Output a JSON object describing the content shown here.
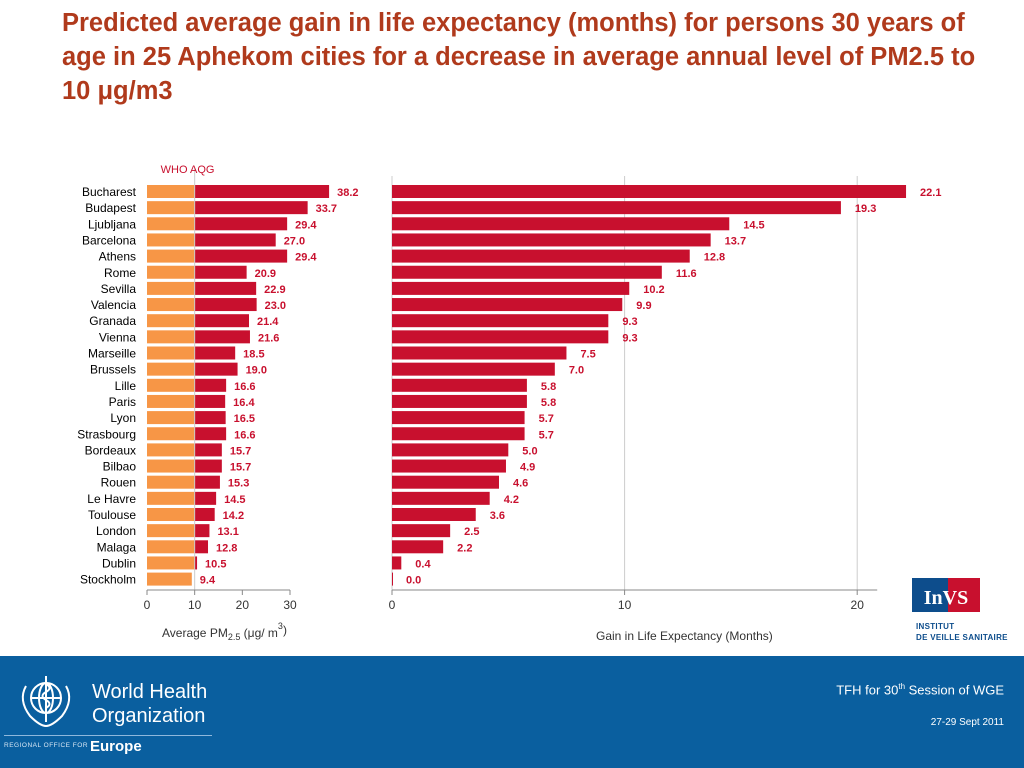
{
  "slide": {
    "title": "Predicted average gain in life expectancy (months) for persons 30 years of age in 25 Aphekom cities for a decrease in average annual level of PM2.5 to 10 μg/m3"
  },
  "chart_data": [
    {
      "type": "bar",
      "orientation": "horizontal",
      "stacked_segments": [
        "up to WHO AQG (10)",
        "above WHO AQG"
      ],
      "categories": [
        "Bucharest",
        "Budapest",
        "Ljubljana",
        "Barcelona",
        "Athens",
        "Rome",
        "Sevilla",
        "Valencia",
        "Granada",
        "Vienna",
        "Marseille",
        "Brussels",
        "Lille",
        "Paris",
        "Lyon",
        "Strasbourg",
        "Bordeaux",
        "Bilbao",
        "Rouen",
        "Le Havre",
        "Toulouse",
        "London",
        "Malaga",
        "Dublin",
        "Stockholm"
      ],
      "values": [
        38.2,
        33.7,
        29.4,
        27.0,
        29.4,
        20.9,
        22.9,
        23.0,
        21.4,
        21.6,
        18.5,
        19.0,
        16.6,
        16.4,
        16.5,
        16.6,
        15.7,
        15.7,
        15.3,
        14.5,
        14.2,
        13.1,
        12.8,
        10.5,
        9.4
      ],
      "value_labels": [
        "38.2",
        "33.7",
        "29.4",
        "27.0",
        "29.4",
        "20.9",
        "22.9",
        "23.0",
        "21.4",
        "21.6",
        "18.5",
        "19.0",
        "16.6",
        "16.4",
        "16.5",
        "16.6",
        "15.7",
        "15.7",
        "15.3",
        "14.5",
        "14.2",
        "13.1",
        "12.8",
        "10.5",
        "9.4"
      ],
      "reference_line": {
        "value": 10,
        "label": "WHO AQG"
      },
      "xlim": [
        0,
        30
      ],
      "x_ticks": [
        "0",
        "10",
        "20",
        "30"
      ],
      "xlabel": {
        "main": "Average PM",
        "sub": "2.5",
        "unit": "(μg/ m",
        "unit_sup": "3",
        "unit_close": ")"
      },
      "colors": {
        "below_aqg": "#f79646",
        "above_aqg": "#c8102e"
      }
    },
    {
      "type": "bar",
      "orientation": "horizontal",
      "categories": [
        "Bucharest",
        "Budapest",
        "Ljubljana",
        "Barcelona",
        "Athens",
        "Rome",
        "Sevilla",
        "Valencia",
        "Granada",
        "Vienna",
        "Marseille",
        "Brussels",
        "Lille",
        "Paris",
        "Lyon",
        "Strasbourg",
        "Bordeaux",
        "Bilbao",
        "Rouen",
        "Le Havre",
        "Toulouse",
        "London",
        "Malaga",
        "Dublin",
        "Stockholm"
      ],
      "values": [
        22.1,
        19.3,
        14.5,
        13.7,
        12.8,
        11.6,
        10.2,
        9.9,
        9.3,
        9.3,
        7.5,
        7.0,
        5.8,
        5.8,
        5.7,
        5.7,
        5.0,
        4.9,
        4.6,
        4.2,
        3.6,
        2.5,
        2.2,
        0.4,
        0.0
      ],
      "value_labels": [
        "22.1",
        "19.3",
        "14.5",
        "13.7",
        "12.8",
        "11.6",
        "10.2",
        "9.9",
        "9.3",
        "9.3",
        "7.5",
        "7.0",
        "5.8",
        "5.8",
        "5.7",
        "5.7",
        "5.0",
        "4.9",
        "4.6",
        "4.2",
        "3.6",
        "2.5",
        "2.2",
        "0.4",
        "0.0"
      ],
      "xlim": [
        0,
        22.7
      ],
      "x_ticks": [
        "0",
        "10",
        "20"
      ],
      "xlabel": "Gain in Life Expectancy (Months)",
      "grid": "vertical",
      "colors": {
        "bar": "#c8102e"
      }
    }
  ],
  "logo": {
    "badge_text": "InVS",
    "line1": "INSTITUT",
    "line2": "DE VEILLE SANITAIRE"
  },
  "footer": {
    "org_name": "World Health\nOrganization",
    "region_prefix": "REGIONAL OFFICE FOR",
    "region": "Europe",
    "event_prefix": "TFH for 30",
    "event_sup": "th",
    "event_suffix": " Session of WGE",
    "dates": "27-29 Sept 2011"
  },
  "colors": {
    "title": "#b03a1c",
    "footer_bg": "#0a5f9f",
    "value_label": "#c8102e"
  }
}
